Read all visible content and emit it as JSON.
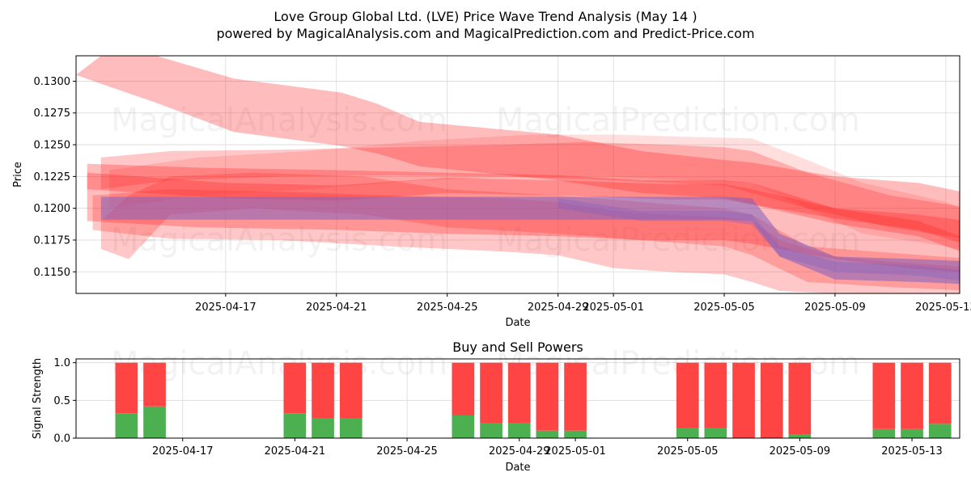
{
  "title_line1": "Love Group Global Ltd. (LVE) Price Wave Trend Analysis (May 14 )",
  "title_line2": "powered by MagicalAnalysis.com and MagicalPrediction.com and Predict-Price.com",
  "watermark_left": "MagicalAnalysis.com",
  "watermark_right": "MagicalPrediction.com",
  "colors": {
    "band_red": "#ff2020",
    "band_purple": "#8060c0",
    "buy": "#4caf50",
    "sell": "#ff4444",
    "grid": "#d9d9d9"
  },
  "chart_data": [
    {
      "type": "area",
      "title": "",
      "xlabel": "Date",
      "ylabel": "Price",
      "ylim": [
        0.1133,
        0.132
      ],
      "x_range_days": [
        -2.4,
        29.5
      ],
      "x_origin_date": "2025-04-14",
      "x_ticks": [
        {
          "day": 3,
          "label": "2025-04-17"
        },
        {
          "day": 7,
          "label": "2025-04-21"
        },
        {
          "day": 11,
          "label": "2025-04-25"
        },
        {
          "day": 15,
          "label": "2025-04-29"
        },
        {
          "day": 17,
          "label": "2025-05-01"
        },
        {
          "day": 21,
          "label": "2025-05-05"
        },
        {
          "day": 25,
          "label": "2025-05-09"
        },
        {
          "day": 29,
          "label": "2025-05-13"
        }
      ],
      "y_ticks": [
        0.115,
        0.1175,
        0.12,
        0.1225,
        0.125,
        0.1275,
        0.13
      ],
      "y_tick_labels": [
        "0.1150",
        "0.1175",
        "0.1200",
        "0.1225",
        "0.1250",
        "0.1275",
        "0.1300"
      ],
      "grid": true,
      "series": [
        {
          "name": "wave-top-high",
          "color": "red",
          "opacity": 0.3,
          "x": [
            -2.4,
            -1.5,
            0.5,
            3.3,
            7.2,
            8.5,
            10,
            15,
            18,
            21,
            22,
            25,
            28,
            30.7
          ],
          "upper": [
            0.1305,
            0.132,
            0.132,
            0.1302,
            0.1291,
            0.1282,
            0.1268,
            0.1258,
            0.1245,
            0.1238,
            0.1236,
            0.1225,
            0.122,
            0.1208
          ],
          "lower": [
            0.1305,
            0.1298,
            0.1283,
            0.126,
            0.1249,
            0.1243,
            0.1233,
            0.1222,
            0.1212,
            0.1208,
            0.1203,
            0.1192,
            0.1183,
            0.1165
          ]
        },
        {
          "name": "wave-main",
          "color": "red",
          "opacity": 0.3,
          "x": [
            -2,
            2,
            7,
            11,
            15,
            18,
            21,
            22,
            25,
            28,
            30.5
          ],
          "upper": [
            0.1235,
            0.1232,
            0.123,
            0.1228,
            0.1226,
            0.1222,
            0.1222,
            0.122,
            0.12,
            0.1195,
            0.1188
          ],
          "lower": [
            0.119,
            0.1185,
            0.1183,
            0.118,
            0.1178,
            0.1175,
            0.1175,
            0.1172,
            0.116,
            0.1152,
            0.1148
          ]
        },
        {
          "name": "wave-wide",
          "color": "red",
          "opacity": 0.25,
          "x": [
            -1.8,
            1,
            5,
            9,
            13,
            15,
            17,
            19,
            21,
            22,
            23,
            25,
            27,
            29,
            30.5
          ],
          "upper": [
            0.121,
            0.1215,
            0.1213,
            0.121,
            0.1208,
            0.1205,
            0.1198,
            0.1195,
            0.1193,
            0.119,
            0.1175,
            0.1162,
            0.1158,
            0.1155,
            0.1152
          ],
          "lower": [
            0.1183,
            0.1176,
            0.1175,
            0.117,
            0.1166,
            0.1163,
            0.1153,
            0.115,
            0.1148,
            0.1142,
            0.1135,
            0.1133,
            0.1133,
            0.1133,
            0.1133
          ]
        },
        {
          "name": "wave-upper",
          "color": "red",
          "opacity": 0.25,
          "x": [
            -1.5,
            1,
            5,
            9,
            13,
            16,
            19,
            21,
            22,
            24,
            27,
            30
          ],
          "upper": [
            0.124,
            0.1245,
            0.1246,
            0.1248,
            0.125,
            0.1252,
            0.125,
            0.1248,
            0.1245,
            0.1228,
            0.121,
            0.12
          ],
          "lower": [
            0.1215,
            0.1222,
            0.1225,
            0.1226,
            0.1225,
            0.1223,
            0.122,
            0.1218,
            0.1212,
            0.12,
            0.1185,
            0.1175
          ]
        },
        {
          "name": "wave-light",
          "color": "red",
          "opacity": 0.15,
          "x": [
            -1.2,
            2,
            6,
            10,
            14,
            17,
            20,
            22,
            24,
            26,
            29,
            30
          ],
          "upper": [
            0.123,
            0.124,
            0.1245,
            0.1253,
            0.1258,
            0.1258,
            0.1256,
            0.1255,
            0.1238,
            0.122,
            0.1205,
            0.1195
          ],
          "lower": [
            0.12,
            0.121,
            0.1215,
            0.1222,
            0.1225,
            0.1225,
            0.1222,
            0.122,
            0.12,
            0.118,
            0.117,
            0.1165
          ]
        },
        {
          "name": "wave-dip",
          "color": "red",
          "opacity": 0.25,
          "x": [
            -1.5,
            -0.5,
            1,
            4,
            8,
            11,
            15,
            18,
            21,
            22,
            24,
            27,
            30
          ],
          "upper": [
            0.119,
            0.121,
            0.1225,
            0.1228,
            0.1225,
            0.1215,
            0.121,
            0.1205,
            0.12,
            0.1195,
            0.117,
            0.1165,
            0.116
          ],
          "lower": [
            0.1168,
            0.116,
            0.1195,
            0.12,
            0.1195,
            0.1185,
            0.118,
            0.1175,
            0.117,
            0.1163,
            0.1142,
            0.1138,
            0.1135
          ]
        },
        {
          "name": "wave-thin",
          "color": "red",
          "opacity": 0.3,
          "x": [
            -2,
            3,
            7,
            11,
            15,
            19,
            21,
            22,
            25,
            28,
            30.3
          ],
          "upper": [
            0.1228,
            0.122,
            0.1218,
            0.1224,
            0.1222,
            0.1219,
            0.1219,
            0.1215,
            0.12,
            0.119,
            0.1172
          ],
          "lower": [
            0.1215,
            0.1208,
            0.1206,
            0.1212,
            0.121,
            0.1207,
            0.1207,
            0.1203,
            0.1188,
            0.1178,
            0.116
          ]
        },
        {
          "name": "wave-purple",
          "color": "purple",
          "opacity": 0.55,
          "x": [
            -1.5,
            15,
            17.5,
            21,
            22,
            23,
            25,
            28,
            30
          ],
          "upper": [
            0.1209,
            0.1209,
            0.1209,
            0.1209,
            0.1208,
            0.118,
            0.1162,
            0.116,
            0.1158
          ],
          "lower": [
            0.1191,
            0.1191,
            0.1191,
            0.1191,
            0.119,
            0.1162,
            0.1144,
            0.1142,
            0.114
          ]
        },
        {
          "name": "wave-purple-trend",
          "color": "purple",
          "opacity": 0.35,
          "x": [
            15,
            16.5,
            18,
            21,
            22,
            23,
            25,
            28,
            30
          ],
          "upper": [
            0.1208,
            0.1203,
            0.1198,
            0.1198,
            0.1195,
            0.117,
            0.1158,
            0.1155,
            0.115
          ],
          "lower": [
            0.12,
            0.1195,
            0.119,
            0.119,
            0.1187,
            0.1162,
            0.115,
            0.1147,
            0.1142
          ]
        }
      ]
    },
    {
      "type": "bar",
      "title": "Buy and Sell Powers",
      "xlabel": "Date",
      "ylabel": "Signal Strength",
      "ylim": [
        0,
        1.05
      ],
      "x_range_days": [
        -0.8,
        30.7
      ],
      "x_origin_date": "2025-04-14",
      "x_ticks": [
        {
          "day": 3,
          "label": "2025-04-17"
        },
        {
          "day": 7,
          "label": "2025-04-21"
        },
        {
          "day": 11,
          "label": "2025-04-25"
        },
        {
          "day": 15,
          "label": "2025-04-29"
        },
        {
          "day": 17,
          "label": "2025-05-01"
        },
        {
          "day": 21,
          "label": "2025-05-05"
        },
        {
          "day": 25,
          "label": "2025-05-09"
        },
        {
          "day": 29,
          "label": "2025-05-13"
        }
      ],
      "y_ticks": [
        0.0,
        0.5,
        1.0
      ],
      "y_tick_labels": [
        "0.0",
        "0.5",
        "1.0"
      ],
      "grid": true,
      "bar_days": [
        1,
        2,
        7,
        8,
        9,
        13,
        14,
        15,
        16,
        17,
        21,
        22,
        23,
        24,
        25,
        28,
        29,
        30
      ],
      "series": [
        {
          "name": "Buy",
          "values": [
            0.33,
            0.42,
            0.33,
            0.26,
            0.26,
            0.3,
            0.2,
            0.2,
            0.1,
            0.1,
            0.13,
            0.13,
            0.0,
            0.0,
            0.05,
            0.12,
            0.12,
            0.19
          ]
        },
        {
          "name": "Sell",
          "values": [
            0.67,
            0.58,
            0.67,
            0.74,
            0.74,
            0.7,
            0.8,
            0.8,
            0.9,
            0.9,
            0.87,
            0.87,
            1.0,
            1.0,
            0.95,
            0.88,
            0.88,
            0.81
          ]
        }
      ]
    }
  ]
}
